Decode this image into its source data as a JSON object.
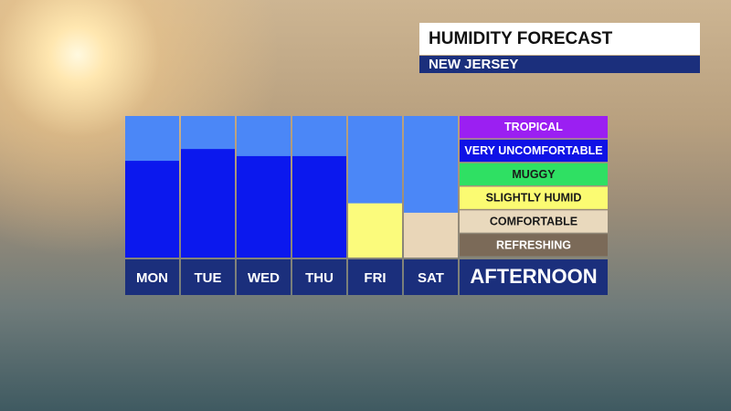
{
  "chart_data": {
    "type": "bar",
    "title": "HUMIDITY FORECAST",
    "subtitle": "NEW JERSEY",
    "categories": [
      "MON",
      "TUE",
      "WED",
      "THU",
      "FRI",
      "SAT"
    ],
    "values": [
      4.1,
      4.6,
      4.3,
      4.3,
      2.3,
      1.9
    ],
    "colors": [
      "#0b18ee",
      "#0b18ee",
      "#0b18ee",
      "#0b18ee",
      "#fbfb7c",
      "#e9d6b8"
    ],
    "ylim": [
      0,
      6
    ],
    "background_color": "#4b87f7",
    "legend": {
      "title": "AFTERNOON",
      "items": [
        {
          "name": "TROPICAL",
          "color": "#9b1ff2"
        },
        {
          "name": "VERY UNCOMFORTABLE",
          "color": "#0f12e6"
        },
        {
          "name": "MUGGY",
          "color": "#2fe063"
        },
        {
          "name": "SLIGHTLY HUMID",
          "color": "#fbfb72"
        },
        {
          "name": "COMFORTABLE",
          "color": "#e9d9bd"
        },
        {
          "name": "REFRESHING",
          "color": "#7b6a58"
        }
      ]
    }
  }
}
